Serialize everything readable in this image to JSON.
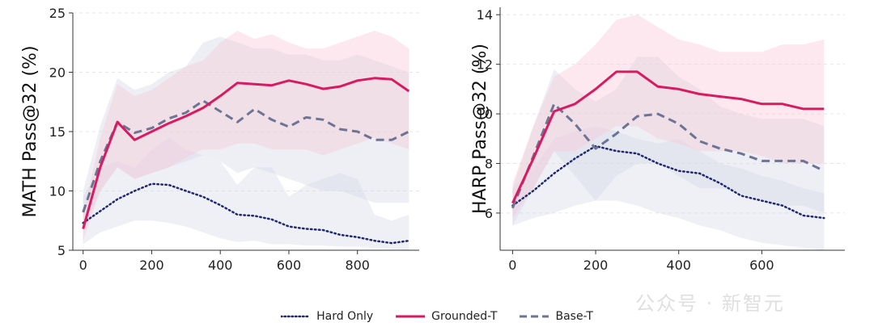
{
  "chart_data": [
    {
      "type": "line",
      "title": "",
      "xlabel": "",
      "ylabel": "MATH Pass@32 (%)",
      "xlim": [
        -30,
        980
      ],
      "ylim": [
        5,
        25
      ],
      "xticks": [
        0,
        200,
        400,
        600,
        800
      ],
      "yticks": [
        5,
        10,
        15,
        20,
        25
      ],
      "series": [
        {
          "name": "Hard Only",
          "x": [
            0,
            50,
            100,
            150,
            200,
            250,
            300,
            350,
            400,
            450,
            500,
            550,
            600,
            650,
            700,
            750,
            800,
            850,
            900,
            950
          ],
          "y": [
            7.3,
            8.3,
            9.3,
            10.0,
            10.6,
            10.5,
            10.0,
            9.5,
            8.8,
            8.0,
            7.9,
            7.6,
            7.0,
            6.8,
            6.7,
            6.3,
            6.1,
            5.8,
            5.6,
            5.8
          ],
          "lower": [
            5.5,
            6.5,
            7.0,
            7.5,
            7.5,
            7.3,
            7.0,
            6.5,
            6.0,
            5.7,
            5.8,
            5.5,
            5.5,
            5.4,
            5.4,
            5.3,
            5.3,
            5.2,
            5.1,
            5.0
          ],
          "upper": [
            9.5,
            12.0,
            12.5,
            12.0,
            13.5,
            14.5,
            13.5,
            13.0,
            12.5,
            10.5,
            12.0,
            12.0,
            9.5,
            10.5,
            11.0,
            11.5,
            11.0,
            8.0,
            7.5,
            8.0
          ]
        },
        {
          "name": "Grounded-T",
          "x": [
            0,
            50,
            100,
            150,
            200,
            250,
            300,
            350,
            400,
            450,
            500,
            550,
            600,
            650,
            700,
            750,
            800,
            850,
            900,
            950
          ],
          "y": [
            6.8,
            12.0,
            15.8,
            14.3,
            15.0,
            15.7,
            16.3,
            17.0,
            18.0,
            19.1,
            19.0,
            18.9,
            19.3,
            19.0,
            18.6,
            18.8,
            19.3,
            19.5,
            19.4,
            18.4
          ],
          "lower": [
            5.8,
            10.0,
            12.0,
            11.0,
            11.5,
            12.0,
            12.8,
            13.5,
            13.5,
            14.0,
            14.0,
            13.5,
            13.5,
            13.5,
            13.0,
            13.5,
            14.0,
            14.5,
            14.0,
            13.5
          ],
          "upper": [
            8.0,
            14.5,
            19.0,
            18.0,
            18.5,
            19.5,
            20.5,
            21.0,
            22.5,
            23.5,
            22.8,
            23.2,
            22.5,
            22.0,
            22.0,
            22.5,
            23.0,
            23.5,
            23.0,
            22.0
          ]
        },
        {
          "name": "Base-T",
          "x": [
            0,
            50,
            100,
            150,
            200,
            250,
            300,
            350,
            400,
            450,
            500,
            550,
            600,
            650,
            700,
            750,
            800,
            850,
            900,
            950
          ],
          "y": [
            8.2,
            12.5,
            15.8,
            14.9,
            15.3,
            16.1,
            16.6,
            17.6,
            16.7,
            15.8,
            16.9,
            16.0,
            15.4,
            16.2,
            16.0,
            15.2,
            15.0,
            14.3,
            14.3,
            15.0
          ],
          "lower": [
            6.5,
            10.0,
            12.0,
            11.0,
            11.5,
            12.0,
            12.5,
            13.0,
            12.5,
            11.5,
            12.0,
            11.5,
            11.0,
            10.5,
            10.0,
            10.0,
            9.5,
            9.0,
            9.0,
            9.0
          ],
          "upper": [
            10.0,
            15.5,
            19.5,
            18.5,
            19.0,
            20.0,
            20.5,
            22.5,
            23.0,
            22.5,
            22.0,
            22.0,
            21.5,
            21.5,
            21.0,
            21.0,
            21.5,
            21.0,
            20.5,
            20.0
          ]
        }
      ]
    },
    {
      "type": "line",
      "title": "",
      "xlabel": "",
      "ylabel": "HARP Pass@32 (%)",
      "xlim": [
        -30,
        800
      ],
      "ylim": [
        4.5,
        14.3
      ],
      "xticks": [
        0,
        200,
        400,
        600
      ],
      "yticks": [
        6,
        8,
        10,
        12,
        14
      ],
      "series": [
        {
          "name": "Hard Only",
          "x": [
            0,
            50,
            100,
            150,
            200,
            250,
            300,
            350,
            400,
            450,
            500,
            550,
            600,
            650,
            700,
            750
          ],
          "y": [
            6.3,
            6.9,
            7.6,
            8.2,
            8.7,
            8.5,
            8.4,
            8.0,
            7.7,
            7.6,
            7.2,
            6.7,
            6.5,
            6.3,
            5.9,
            5.8
          ],
          "lower": [
            5.5,
            5.8,
            6.0,
            6.3,
            6.5,
            6.5,
            6.3,
            6.0,
            5.8,
            5.5,
            5.3,
            5.0,
            4.8,
            4.7,
            4.6,
            4.5
          ],
          "upper": [
            7.0,
            7.8,
            9.0,
            9.3,
            9.5,
            9.3,
            9.0,
            8.8,
            9.0,
            8.5,
            8.0,
            7.8,
            7.5,
            7.3,
            7.0,
            6.8
          ]
        },
        {
          "name": "Grounded-T",
          "x": [
            0,
            50,
            100,
            150,
            200,
            250,
            300,
            350,
            400,
            450,
            500,
            550,
            600,
            650,
            700,
            750
          ],
          "y": [
            6.4,
            8.2,
            10.1,
            10.4,
            11.0,
            11.7,
            11.7,
            11.1,
            11.0,
            10.8,
            10.7,
            10.6,
            10.4,
            10.4,
            10.2,
            10.2
          ],
          "lower": [
            5.8,
            7.0,
            8.5,
            8.5,
            9.0,
            9.5,
            9.5,
            9.0,
            8.8,
            8.5,
            8.5,
            8.5,
            8.3,
            8.0,
            8.0,
            8.0
          ],
          "upper": [
            7.2,
            9.5,
            11.5,
            12.0,
            12.8,
            13.8,
            14.0,
            13.5,
            13.0,
            12.8,
            12.5,
            12.5,
            12.5,
            12.8,
            12.8,
            13.0
          ]
        },
        {
          "name": "Base-T",
          "x": [
            0,
            50,
            100,
            150,
            200,
            250,
            300,
            350,
            400,
            450,
            500,
            550,
            600,
            650,
            700,
            750
          ],
          "y": [
            6.2,
            8.3,
            10.4,
            9.6,
            8.6,
            9.2,
            9.9,
            10.0,
            9.6,
            8.9,
            8.6,
            8.4,
            8.1,
            8.1,
            8.1,
            7.7
          ],
          "lower": [
            5.5,
            7.0,
            8.5,
            7.5,
            6.5,
            7.5,
            8.0,
            8.0,
            7.5,
            7.0,
            7.0,
            6.8,
            6.5,
            6.3,
            6.3,
            6.0
          ],
          "upper": [
            7.0,
            9.5,
            11.8,
            11.0,
            10.5,
            11.0,
            12.3,
            12.3,
            11.5,
            11.0,
            10.3,
            10.0,
            9.8,
            9.8,
            9.8,
            9.5
          ]
        }
      ]
    }
  ],
  "legend": {
    "items": [
      {
        "name": "Hard Only",
        "color": "#1f2a6e",
        "dash": "dotted"
      },
      {
        "name": "Grounded-T",
        "color": "#d81b60",
        "dash": "solid"
      },
      {
        "name": "Base-T",
        "color": "#6e7494",
        "dash": "dashed"
      }
    ]
  },
  "band_colors": {
    "Hard Only": "#d7dbe8",
    "Grounded-T": "#f7c8d6",
    "Base-T": "#d3d9e6"
  },
  "watermark": {
    "text": "公众号 · 新智元"
  }
}
